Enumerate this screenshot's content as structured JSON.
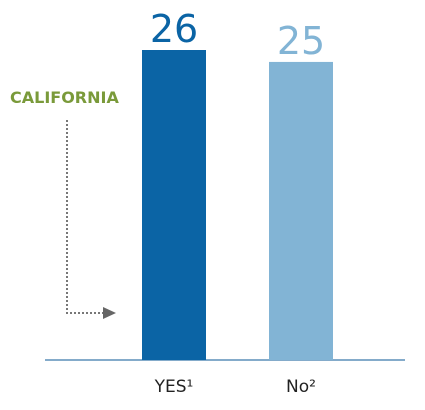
{
  "chart_data": {
    "type": "bar",
    "categories": [
      "YES¹",
      "No²"
    ],
    "values": [
      26,
      25
    ],
    "colors": [
      "#0b64a5",
      "#82b4d5"
    ],
    "annotation": "CALIFORNIA"
  }
}
